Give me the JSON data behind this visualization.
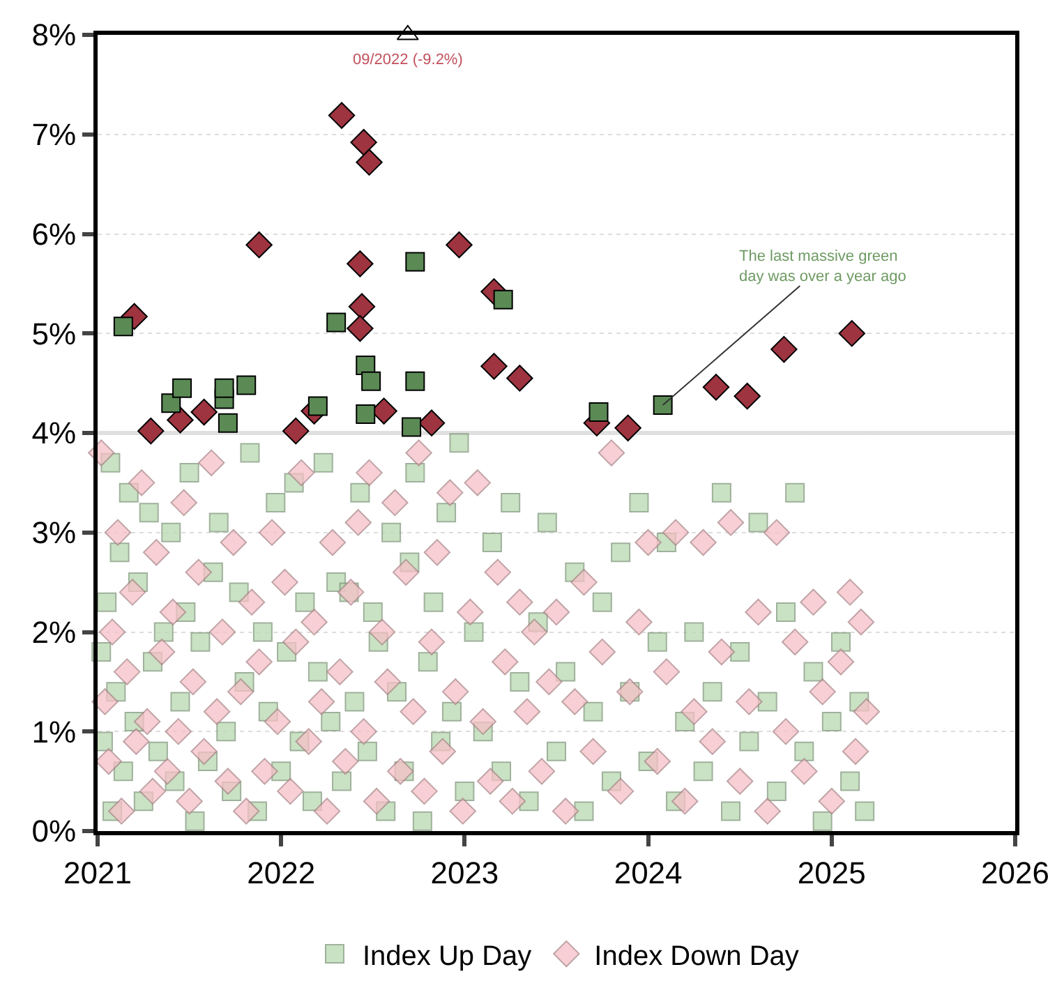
{
  "chart_data": {
    "type": "scatter",
    "xlim": [
      2021,
      2026
    ],
    "xticks": [
      2021,
      2022,
      2023,
      2024,
      2025,
      2026
    ],
    "ylim": [
      0,
      8
    ],
    "yticks": [
      {
        "value": 0,
        "label": "0%"
      },
      {
        "value": 1,
        "label": "1%"
      },
      {
        "value": 2,
        "label": "2%"
      },
      {
        "value": 3,
        "label": "3%"
      },
      {
        "value": 4,
        "label": "4%"
      },
      {
        "value": 5,
        "label": "5%"
      },
      {
        "value": 6,
        "label": "6%"
      },
      {
        "value": 7,
        "label": "7%"
      },
      {
        "value": 8,
        "label": "8%"
      }
    ],
    "grid": "y",
    "legend": "bottom",
    "ref_lines": [
      {
        "axis": "y",
        "value": 4,
        "label": null,
        "color": "#e0e0e0"
      }
    ],
    "annotations": [
      {
        "text": "09/2022 (-9.2%)",
        "x": 2022.69,
        "y": 8
      },
      {
        "text": "The last massive green day was over a year ago",
        "x": 2024.08,
        "y": 4.28
      }
    ],
    "series": [
      {
        "name": "Index Up Day",
        "color": "#b8d9b0",
        "marker": "square",
        "x": [
          2021.02,
          2021.03,
          2021.05,
          2021.07,
          2021.08,
          2021.1,
          2021.12,
          2021.14,
          2021.17,
          2021.2,
          2021.22,
          2021.25,
          2021.28,
          2021.3,
          2021.33,
          2021.36,
          2021.4,
          2021.42,
          2021.45,
          2021.48,
          2021.5,
          2021.53,
          2021.56,
          2021.6,
          2021.63,
          2021.66,
          2021.7,
          2021.73,
          2021.77,
          2021.8,
          2021.83,
          2021.87,
          2021.9,
          2021.93,
          2021.97,
          2022.0,
          2022.03,
          2022.07,
          2022.1,
          2022.13,
          2022.17,
          2022.2,
          2022.23,
          2022.27,
          2022.3,
          2022.33,
          2022.37,
          2022.4,
          2022.43,
          2022.47,
          2022.5,
          2022.53,
          2022.57,
          2022.6,
          2022.63,
          2022.67,
          2022.7,
          2022.73,
          2022.77,
          2022.8,
          2022.83,
          2022.87,
          2022.9,
          2022.93,
          2022.97,
          2023.0,
          2023.05,
          2023.1,
          2023.15,
          2023.2,
          2023.25,
          2023.3,
          2023.35,
          2023.4,
          2023.45,
          2023.5,
          2023.55,
          2023.6,
          2023.65,
          2023.7,
          2023.75,
          2023.8,
          2023.85,
          2023.9,
          2023.95,
          2024.0,
          2024.05,
          2024.1,
          2024.15,
          2024.2,
          2024.25,
          2024.3,
          2024.35,
          2024.4,
          2024.45,
          2024.5,
          2024.55,
          2024.6,
          2024.65,
          2024.7,
          2024.75,
          2024.8,
          2024.85,
          2024.9,
          2024.95,
          2025.0,
          2025.05,
          2025.1,
          2025.15,
          2025.18
        ],
        "values": [
          1.8,
          0.9,
          2.3,
          3.7,
          0.2,
          1.4,
          2.8,
          0.6,
          3.4,
          1.1,
          2.5,
          0.3,
          3.2,
          1.7,
          0.8,
          2.0,
          3.0,
          0.5,
          1.3,
          2.2,
          3.6,
          0.1,
          1.9,
          0.7,
          2.6,
          3.1,
          1.0,
          0.4,
          2.4,
          1.5,
          3.8,
          0.2,
          2.0,
          1.2,
          3.3,
          0.6,
          1.8,
          3.5,
          0.9,
          2.3,
          0.3,
          1.6,
          3.7,
          1.1,
          2.5,
          0.5,
          2.4,
          1.3,
          3.4,
          0.8,
          2.2,
          1.9,
          0.2,
          3.0,
          1.4,
          0.6,
          2.7,
          3.6,
          0.1,
          1.7,
          2.3,
          0.9,
          3.2,
          1.2,
          3.9,
          0.4,
          2.0,
          1.0,
          2.9,
          0.6,
          3.3,
          1.5,
          0.3,
          2.1,
          3.1,
          0.8,
          1.6,
          2.6,
          0.2,
          1.2,
          2.3,
          0.5,
          2.8,
          1.4,
          3.3,
          0.7,
          1.9,
          2.9,
          0.3,
          1.1,
          2.0,
          0.6,
          1.4,
          3.4,
          0.2,
          1.8,
          0.9,
          3.1,
          1.3,
          0.4,
          2.2,
          3.4,
          0.8,
          1.6,
          0.1,
          1.1,
          1.9,
          0.5,
          1.3,
          0.2
        ]
      },
      {
        "name": "Index Down Day",
        "color": "#f6c0c6",
        "marker": "diamond",
        "x": [
          2021.02,
          2021.04,
          2021.06,
          2021.08,
          2021.11,
          2021.13,
          2021.16,
          2021.19,
          2021.21,
          2021.24,
          2021.27,
          2021.3,
          2021.32,
          2021.35,
          2021.38,
          2021.41,
          2021.44,
          2021.47,
          2021.5,
          2021.52,
          2021.55,
          2021.58,
          2021.62,
          2021.65,
          2021.68,
          2021.71,
          2021.74,
          2021.78,
          2021.81,
          2021.84,
          2021.88,
          2021.91,
          2021.95,
          2021.98,
          2022.02,
          2022.05,
          2022.08,
          2022.11,
          2022.15,
          2022.18,
          2022.22,
          2022.25,
          2022.28,
          2022.32,
          2022.35,
          2022.38,
          2022.42,
          2022.45,
          2022.48,
          2022.52,
          2022.55,
          2022.58,
          2022.62,
          2022.65,
          2022.68,
          2022.72,
          2022.75,
          2022.78,
          2022.82,
          2022.85,
          2022.88,
          2022.92,
          2022.95,
          2022.99,
          2023.03,
          2023.07,
          2023.1,
          2023.14,
          2023.18,
          2023.22,
          2023.26,
          2023.3,
          2023.34,
          2023.38,
          2023.42,
          2023.46,
          2023.5,
          2023.55,
          2023.6,
          2023.65,
          2023.7,
          2023.75,
          2023.8,
          2023.85,
          2023.9,
          2023.95,
          2024.0,
          2024.05,
          2024.1,
          2024.15,
          2024.2,
          2024.25,
          2024.3,
          2024.35,
          2024.4,
          2024.45,
          2024.5,
          2024.55,
          2024.6,
          2024.65,
          2024.7,
          2024.75,
          2024.8,
          2024.85,
          2024.9,
          2024.95,
          2025.0,
          2025.05,
          2025.1,
          2025.13,
          2025.16,
          2025.19
        ],
        "values": [
          3.8,
          1.3,
          0.7,
          2.0,
          3.0,
          0.2,
          1.6,
          2.4,
          0.9,
          3.5,
          1.1,
          0.4,
          2.8,
          1.8,
          0.6,
          2.2,
          1.0,
          3.3,
          0.3,
          1.5,
          2.6,
          0.8,
          3.7,
          1.2,
          2.0,
          0.5,
          2.9,
          1.4,
          0.2,
          2.3,
          1.7,
          0.6,
          3.0,
          1.1,
          2.5,
          0.4,
          1.9,
          3.6,
          0.9,
          2.1,
          1.3,
          0.2,
          2.9,
          1.6,
          0.7,
          2.4,
          3.1,
          1.0,
          3.6,
          0.3,
          2.0,
          1.5,
          3.3,
          0.6,
          2.6,
          1.2,
          3.8,
          0.4,
          1.9,
          2.8,
          0.8,
          3.4,
          1.4,
          0.2,
          2.2,
          3.5,
          1.1,
          0.5,
          2.6,
          1.7,
          0.3,
          2.3,
          1.2,
          2.0,
          0.6,
          1.5,
          2.2,
          0.2,
          1.3,
          2.5,
          0.8,
          1.8,
          3.8,
          0.4,
          1.4,
          2.1,
          2.9,
          0.7,
          1.6,
          3.0,
          0.3,
          1.2,
          2.9,
          0.9,
          1.8,
          3.1,
          0.5,
          1.3,
          2.2,
          0.2,
          3.0,
          1.0,
          1.9,
          0.6,
          2.3,
          1.4,
          0.3,
          1.7,
          2.4,
          0.8,
          2.1,
          1.2
        ]
      },
      {
        "color": "#9e3440",
        "marker": "diamond",
        "x": [
          2021.2,
          2021.29,
          2021.45,
          2021.58,
          2021.88,
          2022.08,
          2022.18,
          2022.33,
          2022.45,
          2022.48,
          2022.43,
          2022.44,
          2022.43,
          2022.56,
          2022.82,
          2022.97,
          2023.16,
          2023.16,
          2023.3,
          2023.72,
          2023.89,
          2024.37,
          2024.54,
          2024.74,
          2025.11
        ],
        "values": [
          5.17,
          4.02,
          4.13,
          4.21,
          5.89,
          4.02,
          4.22,
          7.19,
          6.92,
          6.72,
          5.7,
          5.27,
          5.05,
          4.22,
          4.1,
          5.89,
          5.42,
          4.67,
          4.55,
          4.1,
          4.05,
          4.46,
          4.37,
          4.84,
          5.0
        ]
      },
      {
        "color": "#5b8a55",
        "marker": "square",
        "x": [
          2021.14,
          2021.4,
          2021.46,
          2021.69,
          2021.69,
          2021.71,
          2021.81,
          2022.2,
          2022.3,
          2022.46,
          2022.49,
          2022.46,
          2022.73,
          2022.73,
          2022.71,
          2023.21,
          2023.73,
          2024.08
        ],
        "values": [
          5.07,
          4.3,
          4.45,
          4.34,
          4.45,
          4.1,
          4.48,
          4.27,
          5.11,
          4.68,
          4.52,
          4.19,
          5.72,
          4.52,
          4.06,
          5.34,
          4.21,
          4.28
        ]
      },
      {
        "color": "#ffffff",
        "marker": "triangle",
        "x": [
          2022.69
        ],
        "values": [
          8
        ]
      }
    ]
  }
}
